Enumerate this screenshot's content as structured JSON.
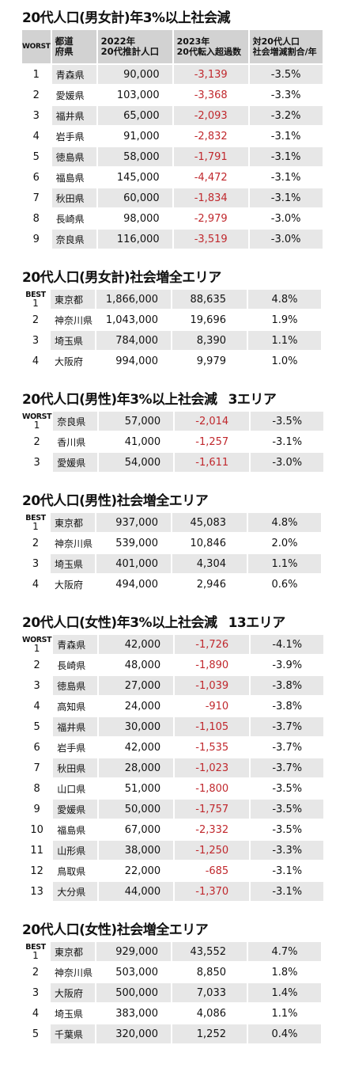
{
  "headers": {
    "rank": "WORST",
    "pref": "都道\n府県",
    "pop": "2022年\n20代推計人口",
    "mig": "2023年\n20代転入超過数",
    "rate": "対20代人口\n社会増減割合/年"
  },
  "sections": [
    {
      "title": "20代人口(男女計)年3%以上社会減",
      "suffix": "",
      "has_header": true,
      "top_label": "",
      "first_shade": true,
      "rows": [
        {
          "rank": "1",
          "pref": "青森県",
          "pop": "90,000",
          "mig": "-3,139",
          "rate": "-3.5%"
        },
        {
          "rank": "2",
          "pref": "愛媛県",
          "pop": "103,000",
          "mig": "-3,368",
          "rate": "-3.3%"
        },
        {
          "rank": "3",
          "pref": "福井県",
          "pop": "65,000",
          "mig": "-2,093",
          "rate": "-3.2%"
        },
        {
          "rank": "4",
          "pref": "岩手県",
          "pop": "91,000",
          "mig": "-2,832",
          "rate": "-3.1%"
        },
        {
          "rank": "5",
          "pref": "徳島県",
          "pop": "58,000",
          "mig": "-1,791",
          "rate": "-3.1%"
        },
        {
          "rank": "6",
          "pref": "福島県",
          "pop": "145,000",
          "mig": "-4,472",
          "rate": "-3.1%"
        },
        {
          "rank": "7",
          "pref": "秋田県",
          "pop": "60,000",
          "mig": "-1,834",
          "rate": "-3.1%"
        },
        {
          "rank": "8",
          "pref": "長崎県",
          "pop": "98,000",
          "mig": "-2,979",
          "rate": "-3.0%"
        },
        {
          "rank": "9",
          "pref": "奈良県",
          "pop": "116,000",
          "mig": "-3,519",
          "rate": "-3.0%"
        }
      ]
    },
    {
      "title": "20代人口(男女計)社会増全エリア",
      "suffix": "",
      "has_header": false,
      "top_label": "BEST",
      "first_shade": true,
      "rows": [
        {
          "rank": "1",
          "pref": "東京都",
          "pop": "1,866,000",
          "mig": "88,635",
          "rate": "4.8%"
        },
        {
          "rank": "2",
          "pref": "神奈川県",
          "pop": "1,043,000",
          "mig": "19,696",
          "rate": "1.9%"
        },
        {
          "rank": "3",
          "pref": "埼玉県",
          "pop": "784,000",
          "mig": "8,390",
          "rate": "1.1%"
        },
        {
          "rank": "4",
          "pref": "大阪府",
          "pop": "994,000",
          "mig": "9,979",
          "rate": "1.0%"
        }
      ]
    },
    {
      "title": "20代人口(男性)年3%以上社会減",
      "suffix": "3エリア",
      "has_header": false,
      "top_label": "WORST",
      "first_shade": true,
      "rows": [
        {
          "rank": "1",
          "pref": "奈良県",
          "pop": "57,000",
          "mig": "-2,014",
          "rate": "-3.5%"
        },
        {
          "rank": "2",
          "pref": "香川県",
          "pop": "41,000",
          "mig": "-1,257",
          "rate": "-3.1%"
        },
        {
          "rank": "3",
          "pref": "愛媛県",
          "pop": "54,000",
          "mig": "-1,611",
          "rate": "-3.0%"
        }
      ]
    },
    {
      "title": "20代人口(男性)社会増全エリア",
      "suffix": "",
      "has_header": false,
      "top_label": "BEST",
      "first_shade": true,
      "rows": [
        {
          "rank": "1",
          "pref": "東京都",
          "pop": "937,000",
          "mig": "45,083",
          "rate": "4.8%"
        },
        {
          "rank": "2",
          "pref": "神奈川県",
          "pop": "539,000",
          "mig": "10,846",
          "rate": "2.0%"
        },
        {
          "rank": "3",
          "pref": "埼玉県",
          "pop": "401,000",
          "mig": "4,304",
          "rate": "1.1%"
        },
        {
          "rank": "4",
          "pref": "大阪府",
          "pop": "494,000",
          "mig": "2,946",
          "rate": "0.6%"
        }
      ]
    },
    {
      "title": "20代人口(女性)年3%以上社会減",
      "suffix": "13エリア",
      "has_header": false,
      "top_label": "WORST",
      "first_shade": true,
      "rows": [
        {
          "rank": "1",
          "pref": "青森県",
          "pop": "42,000",
          "mig": "-1,726",
          "rate": "-4.1%"
        },
        {
          "rank": "2",
          "pref": "長崎県",
          "pop": "48,000",
          "mig": "-1,890",
          "rate": "-3.9%"
        },
        {
          "rank": "3",
          "pref": "徳島県",
          "pop": "27,000",
          "mig": "-1,039",
          "rate": "-3.8%"
        },
        {
          "rank": "4",
          "pref": "高知県",
          "pop": "24,000",
          "mig": "-910",
          "rate": "-3.8%"
        },
        {
          "rank": "5",
          "pref": "福井県",
          "pop": "30,000",
          "mig": "-1,105",
          "rate": "-3.7%"
        },
        {
          "rank": "6",
          "pref": "岩手県",
          "pop": "42,000",
          "mig": "-1,535",
          "rate": "-3.7%"
        },
        {
          "rank": "7",
          "pref": "秋田県",
          "pop": "28,000",
          "mig": "-1,023",
          "rate": "-3.7%"
        },
        {
          "rank": "8",
          "pref": "山口県",
          "pop": "51,000",
          "mig": "-1,800",
          "rate": "-3.5%"
        },
        {
          "rank": "9",
          "pref": "愛媛県",
          "pop": "50,000",
          "mig": "-1,757",
          "rate": "-3.5%"
        },
        {
          "rank": "10",
          "pref": "福島県",
          "pop": "67,000",
          "mig": "-2,332",
          "rate": "-3.5%"
        },
        {
          "rank": "11",
          "pref": "山形県",
          "pop": "38,000",
          "mig": "-1,250",
          "rate": "-3.3%"
        },
        {
          "rank": "12",
          "pref": "鳥取県",
          "pop": "22,000",
          "mig": "-685",
          "rate": "-3.1%"
        },
        {
          "rank": "13",
          "pref": "大分県",
          "pop": "44,000",
          "mig": "-1,370",
          "rate": "-3.1%"
        }
      ]
    },
    {
      "title": "20代人口(女性)社会増全エリア",
      "suffix": "",
      "has_header": false,
      "top_label": "BEST",
      "first_shade": true,
      "rows": [
        {
          "rank": "1",
          "pref": "東京都",
          "pop": "929,000",
          "mig": "43,552",
          "rate": "4.7%"
        },
        {
          "rank": "2",
          "pref": "神奈川県",
          "pop": "503,000",
          "mig": "8,850",
          "rate": "1.8%"
        },
        {
          "rank": "3",
          "pref": "大阪府",
          "pop": "500,000",
          "mig": "7,033",
          "rate": "1.4%"
        },
        {
          "rank": "4",
          "pref": "埼玉県",
          "pop": "383,000",
          "mig": "4,086",
          "rate": "1.1%"
        },
        {
          "rank": "5",
          "pref": "千葉県",
          "pop": "320,000",
          "mig": "1,252",
          "rate": "0.4%"
        }
      ]
    }
  ],
  "colors": {
    "negative": "#c0282d",
    "header_bg": "#d2d2d2",
    "row_shade": "#e7e7e7"
  }
}
